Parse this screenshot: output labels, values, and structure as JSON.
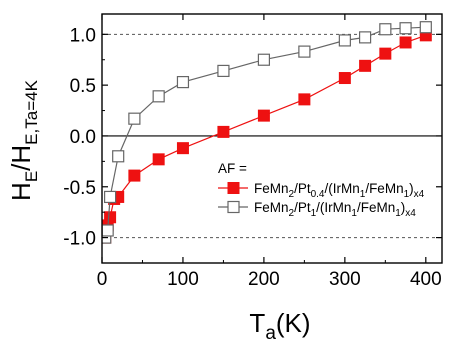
{
  "chart_data": {
    "type": "line",
    "xlabel": {
      "main": "T",
      "sub": "a",
      "tail": "(K)"
    },
    "ylabel": {
      "main": "H",
      "sub1": "E",
      "mid": "/H",
      "sub2": "E,Ta=4K"
    },
    "xlim": [
      0,
      420
    ],
    "ylim": [
      -1.25,
      1.2
    ],
    "xticks": [
      0,
      100,
      200,
      300,
      400
    ],
    "yticks": [
      1.0,
      0.5,
      0.0,
      -0.5,
      -1.0
    ],
    "xtick_labels": [
      "0",
      "100",
      "200",
      "300",
      "400"
    ],
    "ytick_labels": [
      "1.0",
      "0.5",
      "0.0",
      "-0.5",
      "-1.0"
    ],
    "reference_lines": [
      1.0,
      -1.0
    ],
    "legend": {
      "title": "AF =",
      "placement": "lower-right"
    },
    "series": [
      {
        "name_parts": [
          {
            "t": "FeMn"
          },
          {
            "t": "2",
            "s": "sub"
          },
          {
            "t": "/Pt"
          },
          {
            "t": "0.4",
            "s": "sub"
          },
          {
            "t": "/(IrMn"
          },
          {
            "t": "1",
            "s": "sub"
          },
          {
            "t": "/FeMn"
          },
          {
            "t": "1",
            "s": "sub"
          },
          {
            "t": ")"
          },
          {
            "t": "x4",
            "s": "sub"
          }
        ],
        "color": "#ee1111",
        "marker": "filled-square",
        "x": [
          4,
          7,
          10,
          15,
          20,
          40,
          70,
          100,
          150,
          200,
          250,
          300,
          325,
          350,
          375,
          400
        ],
        "y": [
          -1.0,
          -0.88,
          -0.8,
          -0.62,
          -0.6,
          -0.39,
          -0.23,
          -0.12,
          0.04,
          0.2,
          0.36,
          0.57,
          0.69,
          0.81,
          0.92,
          0.99
        ]
      },
      {
        "name_parts": [
          {
            "t": "FeMn"
          },
          {
            "t": "2",
            "s": "sub"
          },
          {
            "t": "/Pt"
          },
          {
            "t": "1",
            "s": "sub"
          },
          {
            "t": "/(IrMn"
          },
          {
            "t": "1",
            "s": "sub"
          },
          {
            "t": "/FeMn"
          },
          {
            "t": "1",
            "s": "sub"
          },
          {
            "t": ")"
          },
          {
            "t": "x4",
            "s": "sub"
          }
        ],
        "color": "#666666",
        "marker": "open-square",
        "x": [
          4,
          7,
          10,
          20,
          40,
          70,
          100,
          150,
          200,
          250,
          300,
          325,
          350,
          375,
          400
        ],
        "y": [
          -1.0,
          -0.93,
          -0.6,
          -0.2,
          0.17,
          0.39,
          0.53,
          0.64,
          0.75,
          0.83,
          0.94,
          0.97,
          1.05,
          1.06,
          1.07
        ]
      }
    ]
  }
}
